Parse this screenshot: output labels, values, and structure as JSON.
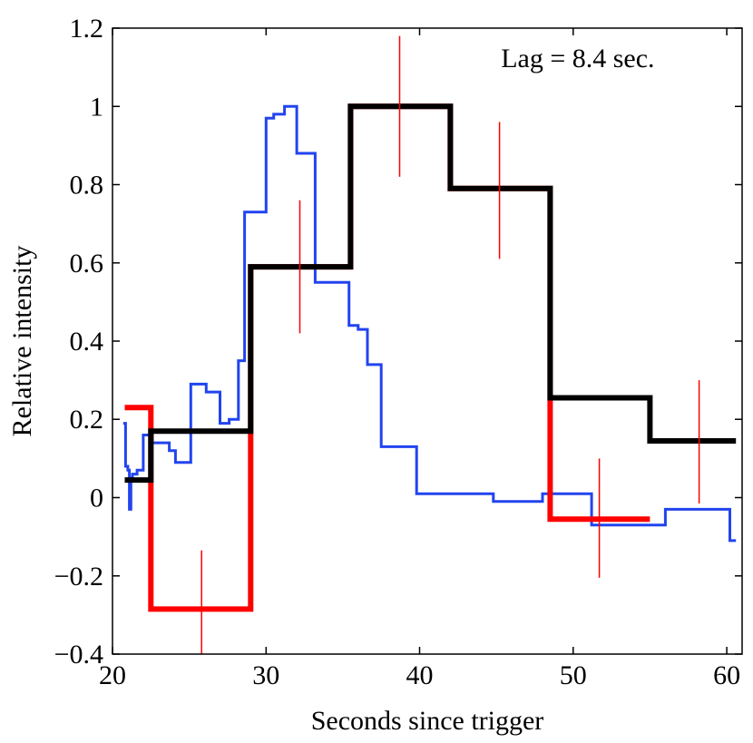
{
  "chart_data": {
    "type": "line",
    "title": "",
    "xlabel": "Seconds since trigger",
    "ylabel": "Relative intensity",
    "xlim": [
      20,
      61
    ],
    "ylim": [
      -0.4,
      1.2
    ],
    "xticks": [
      20,
      30,
      40,
      50,
      60
    ],
    "yticks": [
      -0.4,
      -0.2,
      0,
      0.2,
      0.4,
      0.6,
      0.8,
      1,
      1.2
    ],
    "xtick_labels": [
      "20",
      "30",
      "40",
      "50",
      "60"
    ],
    "ytick_labels": [
      "−0.4",
      "−0.2",
      "0",
      "0.2",
      "0.4",
      "0.6",
      "0.8",
      "1",
      "1.2"
    ],
    "grid": false,
    "annotations": [
      {
        "text": "Lag = 8.4 sec.",
        "x": 45.3,
        "y": 1.1
      }
    ],
    "series": [
      {
        "name": "blue-light-curve",
        "color": "#2244ee",
        "style": "step",
        "x": [
          20.7,
          20.85,
          21.0,
          21.1,
          21.2,
          21.3,
          21.6,
          22.0,
          22.6,
          23.7,
          24.1,
          25.1,
          25.8,
          26.1,
          27.0,
          27.6,
          28.2,
          28.6,
          29.1,
          30.0,
          30.5,
          31.2,
          32.0,
          32.6,
          33.2,
          33.9,
          35.4,
          36.0,
          36.6,
          37.5,
          38.4,
          39.0,
          39.8,
          42.0,
          44.8,
          46.0,
          48.0,
          50.2,
          51.2,
          52.0,
          53.3,
          54.8,
          56.0,
          58.0,
          60.2,
          60.6
        ],
        "y": [
          0.19,
          0.08,
          0.07,
          -0.03,
          0.05,
          0.06,
          0.07,
          0.16,
          0.14,
          0.12,
          0.09,
          0.29,
          0.29,
          0.27,
          0.19,
          0.2,
          0.35,
          0.73,
          0.73,
          0.97,
          0.98,
          1.0,
          0.88,
          0.88,
          0.55,
          0.55,
          0.44,
          0.43,
          0.34,
          0.13,
          0.13,
          0.13,
          0.01,
          0.01,
          -0.01,
          -0.01,
          0.01,
          0.01,
          -0.07,
          -0.07,
          -0.07,
          -0.07,
          -0.03,
          -0.03,
          -0.11,
          -0.11
        ]
      },
      {
        "name": "red-binned-curve",
        "color": "#ff0000",
        "style": "step",
        "x": [
          20.8,
          22.5,
          29.0,
          35.5,
          42.0,
          48.5,
          55.0
        ],
        "y": [
          0.23,
          -0.285,
          0.59,
          1.0,
          0.79,
          -0.055,
          -0.055
        ]
      },
      {
        "name": "black-shifted-curve",
        "color": "#000000",
        "style": "step",
        "x": [
          20.8,
          22.5,
          29.0,
          35.5,
          42.0,
          48.5,
          55.0,
          60.6
        ],
        "y": [
          0.045,
          0.17,
          0.59,
          1.0,
          0.79,
          0.255,
          0.145,
          0.145
        ]
      }
    ],
    "error_bars": {
      "name": "red-error-bars",
      "color": "#ff0000",
      "points": [
        {
          "x": 25.8,
          "low": -0.4,
          "high": -0.135
        },
        {
          "x": 32.2,
          "low": 0.42,
          "high": 0.76
        },
        {
          "x": 38.7,
          "low": 0.82,
          "high": 1.18
        },
        {
          "x": 45.2,
          "low": 0.61,
          "high": 0.96
        },
        {
          "x": 51.7,
          "low": -0.205,
          "high": 0.1
        },
        {
          "x": 58.2,
          "low": -0.015,
          "high": 0.3
        }
      ]
    }
  }
}
